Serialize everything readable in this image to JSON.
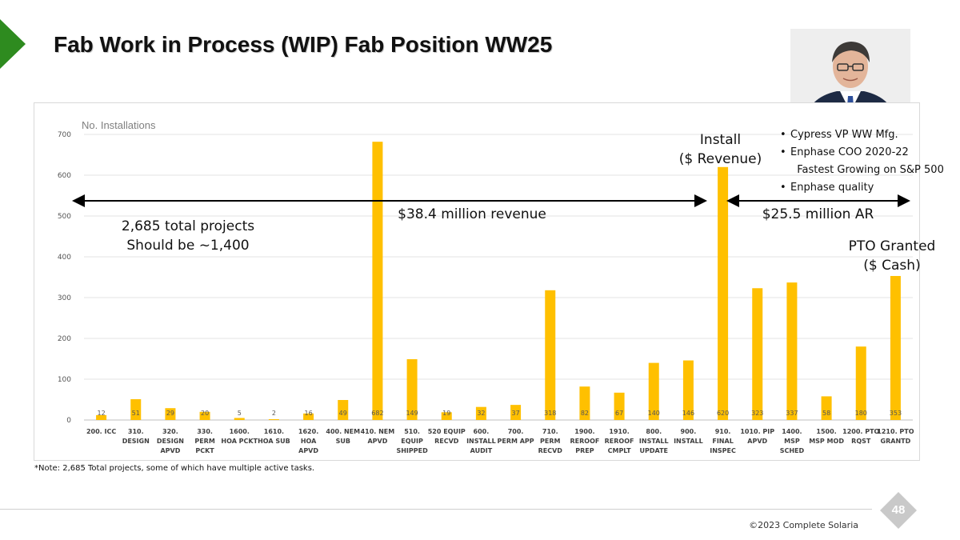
{
  "slide": {
    "title": "Fab Work in Process (WIP) Fab Position WW25",
    "note": "*Note: 2,685 Total projects, some of which have multiple active tasks.",
    "copyright": "©2023 Complete Solaria",
    "page_number": "48",
    "accent_color": "#2e8b1f",
    "bar_color": "#ffc000"
  },
  "annotations": {
    "total_projects": "2,685 total projects",
    "should_be": "Should be ~1,400",
    "revenue_range": "$38.4 million revenue",
    "ar_range": "$25.5 million AR",
    "install_line1": "Install",
    "install_line2": "($ Revenue)",
    "pto_line1": "PTO Granted",
    "pto_line2": "($ Cash)"
  },
  "bio": {
    "photo": "person-portrait",
    "bullets": [
      "Cypress VP WW Mfg.",
      "Enphase COO 2020-22",
      "Fastest Growing on S&P 500",
      "Enphase quality"
    ]
  },
  "chart_data": {
    "type": "bar",
    "title": "",
    "ylabel": "No. Installations",
    "xlabel": "",
    "ylim": [
      0,
      700
    ],
    "yticks": [
      0,
      100,
      200,
      300,
      400,
      500,
      600,
      700
    ],
    "grid": true,
    "categories": [
      "200. ICC",
      "310. DESIGN",
      "320. DESIGN APVD",
      "330. PERM PCKT",
      "1600. HOA PCKT",
      "1610. HOA SUB",
      "1620. HOA APVD",
      "400. NEM SUB",
      "410. NEM APVD",
      "510. EQUIP SHIPPED",
      "520 EQUIP RECVD",
      "600. INSTALL AUDIT",
      "700. PERM APP",
      "710. PERM RECVD",
      "1900. REROOF PREP",
      "1910. REROOF CMPLT",
      "800. INSTALL UPDATE",
      "900. INSTALL",
      "910. FINAL INSPEC",
      "1010. PIP APVD",
      "1400. MSP SCHED",
      "1500. MSP MOD",
      "1200. PTO RQST",
      "1210. PTO GRANTD"
    ],
    "category_lines": [
      [
        "200. ICC"
      ],
      [
        "310.",
        "DESIGN"
      ],
      [
        "320.",
        "DESIGN",
        "APVD"
      ],
      [
        "330.",
        "PERM",
        "PCKT"
      ],
      [
        "1600.",
        "HOA PCKT"
      ],
      [
        "1610.",
        "HOA SUB"
      ],
      [
        "1620.",
        "HOA",
        "APVD"
      ],
      [
        "400. NEM",
        "SUB"
      ],
      [
        "410. NEM",
        "APVD"
      ],
      [
        "510.",
        "EQUIP",
        "SHIPPED"
      ],
      [
        "520 EQUIP",
        "RECVD"
      ],
      [
        "600.",
        "INSTALL",
        "AUDIT"
      ],
      [
        "700.",
        "PERM APP"
      ],
      [
        "710.",
        "PERM",
        "RECVD"
      ],
      [
        "1900.",
        "REROOF",
        "PREP"
      ],
      [
        "1910.",
        "REROOF",
        "CMPLT"
      ],
      [
        "800.",
        "INSTALL",
        "UPDATE"
      ],
      [
        "900.",
        "INSTALL"
      ],
      [
        "910.",
        "FINAL",
        "INSPEC"
      ],
      [
        "1010. PIP",
        "APVD"
      ],
      [
        "1400.",
        "MSP",
        "SCHED"
      ],
      [
        "1500.",
        "MSP MOD"
      ],
      [
        "1200. PTO",
        "RQST"
      ],
      [
        "1210. PTO",
        "GRANTD"
      ]
    ],
    "values": [
      12,
      51,
      29,
      20,
      5,
      2,
      16,
      49,
      682,
      149,
      19,
      32,
      37,
      318,
      82,
      67,
      140,
      146,
      620,
      323,
      337,
      58,
      180,
      353
    ]
  }
}
